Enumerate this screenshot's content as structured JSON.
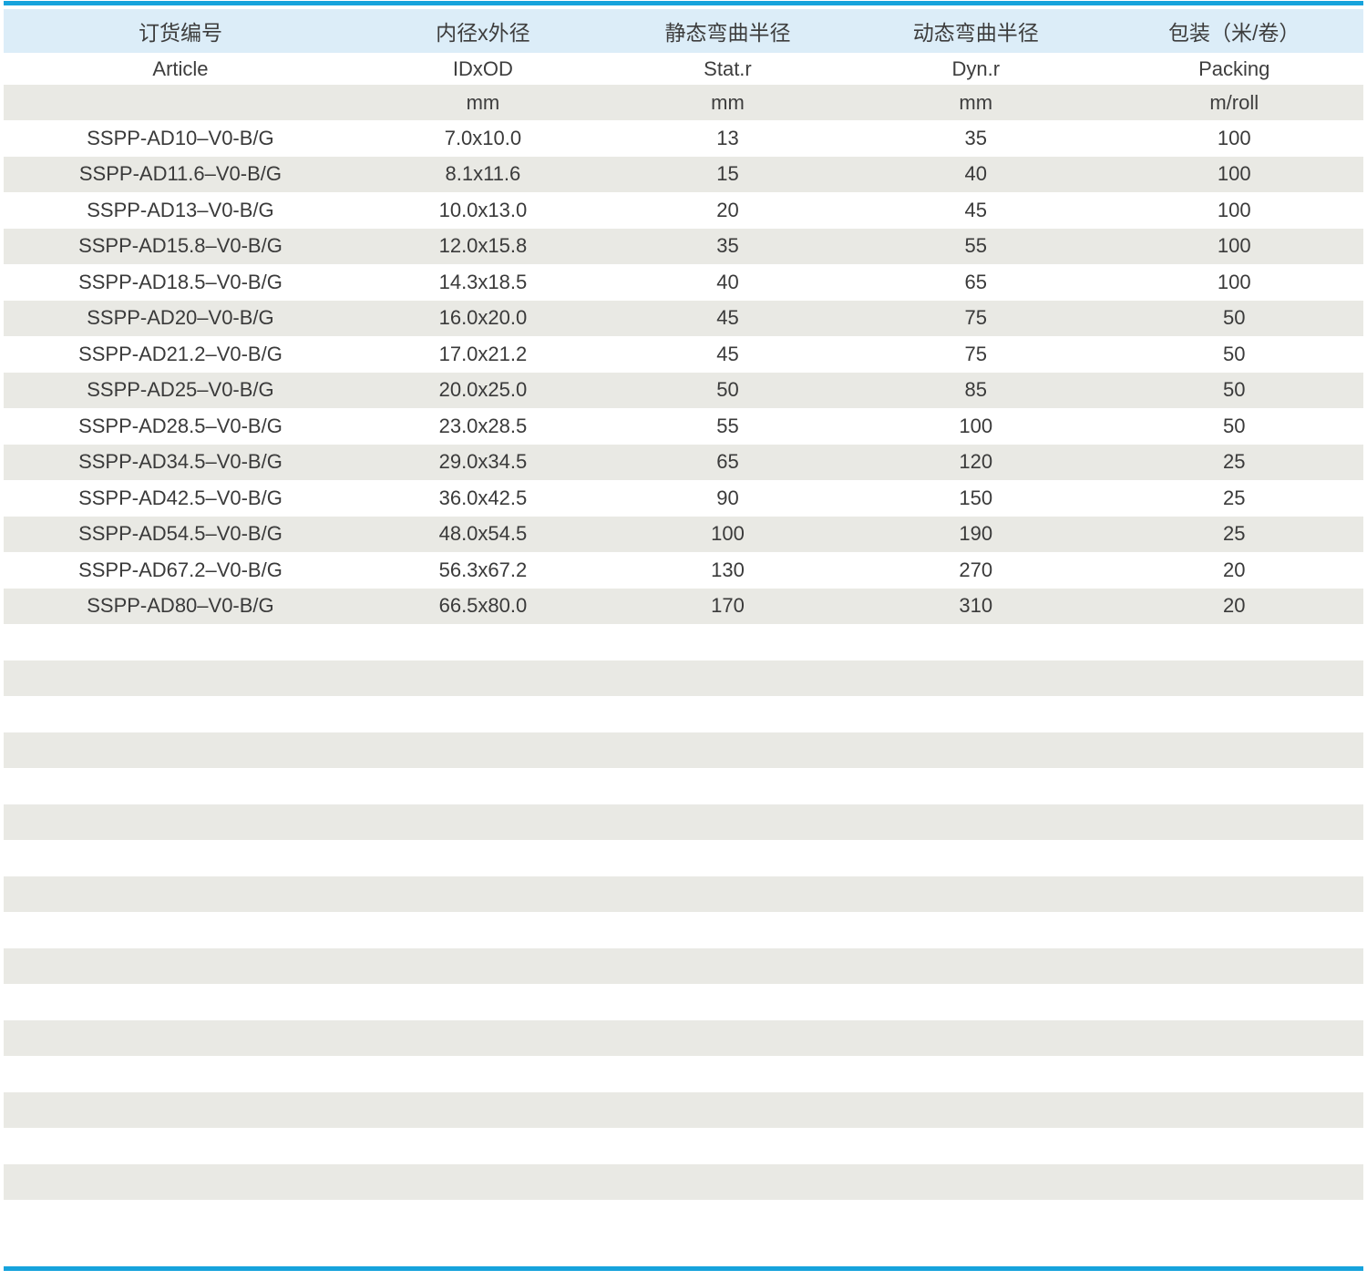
{
  "table": {
    "accent_color": "#16a3dc",
    "header_bg": "#dcedf8",
    "stripe_bg": "#e9e9e4",
    "columns": [
      {
        "zh": "订货编号",
        "en": "Article",
        "unit": ""
      },
      {
        "zh": "内径x外径",
        "en": "IDxOD",
        "unit": "mm"
      },
      {
        "zh": "静态弯曲半径",
        "en": "Stat.r",
        "unit": "mm"
      },
      {
        "zh": "动态弯曲半径",
        "en": "Dyn.r",
        "unit": "mm"
      },
      {
        "zh": "包装（米/卷）",
        "en": "Packing",
        "unit": "m/roll"
      }
    ],
    "rows": [
      [
        "SSPP-AD10–V0-B/G",
        "7.0x10.0",
        "13",
        "35",
        "100"
      ],
      [
        "SSPP-AD11.6–V0-B/G",
        "8.1x11.6",
        "15",
        "40",
        "100"
      ],
      [
        "SSPP-AD13–V0-B/G",
        "10.0x13.0",
        "20",
        "45",
        "100"
      ],
      [
        "SSPP-AD15.8–V0-B/G",
        "12.0x15.8",
        "35",
        "55",
        "100"
      ],
      [
        "SSPP-AD18.5–V0-B/G",
        "14.3x18.5",
        "40",
        "65",
        "100"
      ],
      [
        "SSPP-AD20–V0-B/G",
        "16.0x20.0",
        "45",
        "75",
        "50"
      ],
      [
        "SSPP-AD21.2–V0-B/G",
        "17.0x21.2",
        "45",
        "75",
        "50"
      ],
      [
        "SSPP-AD25–V0-B/G",
        "20.0x25.0",
        "50",
        "85",
        "50"
      ],
      [
        "SSPP-AD28.5–V0-B/G",
        "23.0x28.5",
        "55",
        "100",
        "50"
      ],
      [
        "SSPP-AD34.5–V0-B/G",
        "29.0x34.5",
        "65",
        "120",
        "25"
      ],
      [
        "SSPP-AD42.5–V0-B/G",
        "36.0x42.5",
        "90",
        "150",
        "25"
      ],
      [
        "SSPP-AD54.5–V0-B/G",
        "48.0x54.5",
        "100",
        "190",
        "25"
      ],
      [
        "SSPP-AD67.2–V0-B/G",
        "56.3x67.2",
        "130",
        "270",
        "20"
      ],
      [
        "SSPP-AD80–V0-B/G",
        "66.5x80.0",
        "170",
        "310",
        "20"
      ]
    ],
    "empty_row_count": 17
  }
}
